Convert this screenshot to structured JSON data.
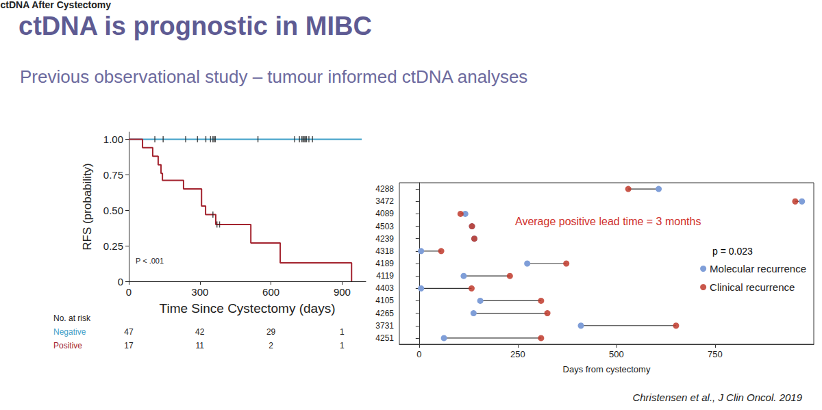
{
  "title": "ctDNA is prognostic in MIBC",
  "subtitle": "Previous observational study – tumour informed ctDNA analyses",
  "source": "Christensen et al., J Clin Oncol. 2019",
  "chart_data": [
    {
      "type": "line",
      "line_style": "step",
      "title": "ctDNA After Cystectomy",
      "x_label": "Time Since Cystectomy (days)",
      "y_label": "RFS (probability)",
      "xlim": [
        0,
        1000
      ],
      "xticks": [
        0,
        300,
        600,
        900
      ],
      "ylim": [
        0,
        1.05
      ],
      "yticks": [
        0,
        0.25,
        {
          "value": 0.5,
          "label": "0.50"
        },
        0.75,
        {
          "value": 1,
          "label": "1.00"
        }
      ],
      "grid": false,
      "series": [
        {
          "name": "Negative",
          "color": "#3fa0c8",
          "x": [
            0,
            983
          ],
          "values": [
            1,
            1
          ],
          "censored": [
            110,
            145,
            240,
            290,
            325,
            345,
            355,
            360,
            365,
            545,
            700,
            720,
            730,
            735,
            740,
            745,
            750,
            760,
            775
          ]
        },
        {
          "name": "Positive",
          "color": "#a3232e",
          "x": [
            0,
            58,
            101,
            124,
            136,
            142,
            231,
            307,
            324,
            367,
            515,
            639,
            940
          ],
          "values": [
            1,
            0.94,
            0.88,
            0.82,
            0.76,
            0.71,
            0.65,
            0.53,
            0.47,
            0.4,
            0.27,
            0.13,
            0
          ],
          "censored": [
            355,
            372,
            383
          ]
        }
      ],
      "annotations": [
        {
          "text": "P < .001"
        }
      ],
      "at_risk": {
        "title": "No. at risk",
        "x": [
          0,
          300,
          600,
          900
        ],
        "rows": [
          {
            "name": "Negative",
            "values": [
              47,
              42,
              29,
              1
            ]
          },
          {
            "name": "Positive",
            "values": [
              17,
              11,
              2,
              1
            ]
          }
        ]
      }
    },
    {
      "type": "dumbbell",
      "orientation": "horizontal",
      "x_label": "Days from cystectomy",
      "categories": [
        "4288",
        "3472",
        "4089",
        "4503",
        "4239",
        "4318",
        "4189",
        "4119",
        "4403",
        "4105",
        "4265",
        "3731",
        "4251"
      ],
      "xlim": [
        -50,
        1000
      ],
      "xticks": [
        0,
        250,
        500,
        750
      ],
      "grid": false,
      "legend": "right",
      "series": [
        {
          "name": "Molecular recurrence",
          "color": "#7f9ed8",
          "marker": "circle",
          "values": [
            607,
            970,
            117,
            134,
            140,
            5,
            274,
            113,
            5,
            155,
            138,
            410,
            63
          ]
        },
        {
          "name": "Clinical recurrence",
          "color": "#c0392b",
          "marker": "circle",
          "values": [
            530,
            953,
            105,
            134,
            140,
            56,
            373,
            230,
            133,
            309,
            325,
            651,
            309
          ]
        }
      ],
      "annotations": [
        {
          "text": "Average positive lead time = 3 months",
          "color": "#d0312d"
        },
        {
          "text": "p = 0.023",
          "color": "#000000"
        }
      ]
    }
  ]
}
